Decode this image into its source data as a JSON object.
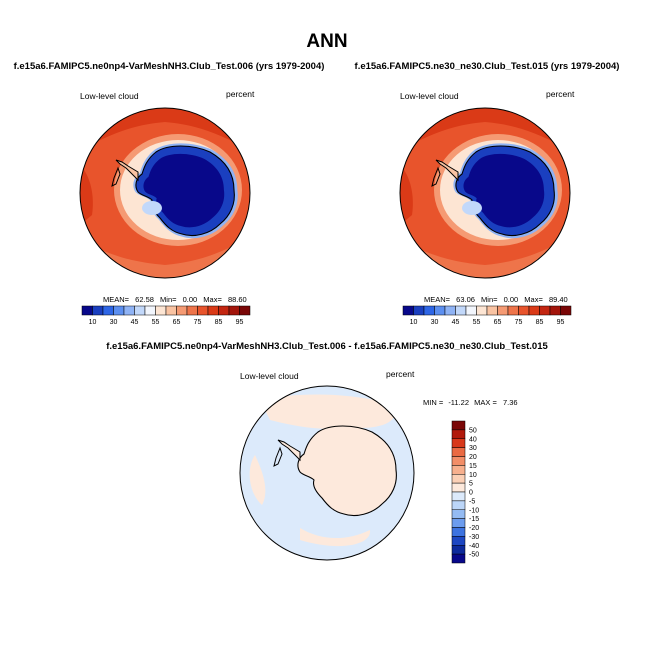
{
  "figure": {
    "season": "ANN"
  },
  "panels": [
    {
      "case_title": "f.e15a6.FAMIPC5.ne0np4-VarMeshNH3.Club_Test.006 (yrs 1979-2004)",
      "variable": "Low-level cloud",
      "units": "percent",
      "stats": {
        "mean_label": "MEAN=",
        "mean": "62.58",
        "min_label": "Min=",
        "min": "0.00",
        "max_label": "Max=",
        "max": "88.60"
      }
    },
    {
      "case_title": "f.e15a6.FAMIPC5.ne30_ne30.Club_Test.015 (yrs 1979-2004)",
      "variable": "Low-level cloud",
      "units": "percent",
      "stats": {
        "mean_label": "MEAN=",
        "mean": "63.06",
        "min_label": "Min=",
        "min": "0.00",
        "max_label": "Max=",
        "max": "89.40"
      }
    },
    {
      "case_title": "f.e15a6.FAMIPC5.ne0np4-VarMeshNH3.Club_Test.006 - f.e15a6.FAMIPC5.ne30_ne30.Club_Test.015",
      "variable": "Low-level cloud",
      "units": "percent",
      "stats": {
        "min_label": "MIN =",
        "min": "-11.22",
        "max_label": "MAX =",
        "max": "7.36"
      }
    }
  ],
  "chart_data": [
    {
      "type": "heatmap",
      "projection": "polar stereographic (South Pole)",
      "title": "f.e15a6.FAMIPC5.ne0np4-VarMeshNH3.Club_Test.006 (yrs 1979-2004)",
      "variable": "Low-level cloud",
      "units": "percent",
      "stats": {
        "mean": 62.58,
        "min": 0.0,
        "max": 88.6
      },
      "colorbar": {
        "orientation": "horizontal",
        "levels": [
          10,
          30,
          45,
          55,
          65,
          75,
          85,
          95
        ],
        "colors": [
          "#08088a",
          "#1a3fbf",
          "#2e66e6",
          "#5c8ff0",
          "#8fb3f5",
          "#c2d8fa",
          "#f2f6fd",
          "#fde5d3",
          "#f9c3a2",
          "#f59a73",
          "#ee744a",
          "#e8542c",
          "#da3a17",
          "#c32611",
          "#a3150b",
          "#7a0707"
        ]
      }
    },
    {
      "type": "heatmap",
      "projection": "polar stereographic (South Pole)",
      "title": "f.e15a6.FAMIPC5.ne30_ne30.Club_Test.015 (yrs 1979-2004)",
      "variable": "Low-level cloud",
      "units": "percent",
      "stats": {
        "mean": 63.06,
        "min": 0.0,
        "max": 89.4
      },
      "colorbar": {
        "orientation": "horizontal",
        "levels": [
          10,
          30,
          45,
          55,
          65,
          75,
          85,
          95
        ],
        "colors": [
          "#08088a",
          "#1a3fbf",
          "#2e66e6",
          "#5c8ff0",
          "#8fb3f5",
          "#c2d8fa",
          "#f2f6fd",
          "#fde5d3",
          "#f9c3a2",
          "#f59a73",
          "#ee744a",
          "#e8542c",
          "#da3a17",
          "#c32611",
          "#a3150b",
          "#7a0707"
        ]
      }
    },
    {
      "type": "heatmap",
      "projection": "polar stereographic (South Pole)",
      "title": "f.e15a6.FAMIPC5.ne0np4-VarMeshNH3.Club_Test.006 - f.e15a6.FAMIPC5.ne30_ne30.Club_Test.015",
      "variable": "Low-level cloud",
      "units": "percent",
      "stats": {
        "min": -11.22,
        "max": 7.36
      },
      "colorbar": {
        "orientation": "vertical",
        "levels": [
          50,
          40,
          30,
          20,
          15,
          10,
          5,
          0,
          -5,
          -10,
          -15,
          -20,
          -30,
          -40,
          -50
        ],
        "colors": [
          "#7a0707",
          "#b1190b",
          "#d8381a",
          "#ea6a43",
          "#f28e68",
          "#f7b08e",
          "#fbd0b6",
          "#fde9dc",
          "#dceafb",
          "#bcd6f8",
          "#94bbf3",
          "#6c9cee",
          "#3d73e0",
          "#1d47c2",
          "#0d2a9c",
          "#08088a"
        ]
      }
    }
  ]
}
